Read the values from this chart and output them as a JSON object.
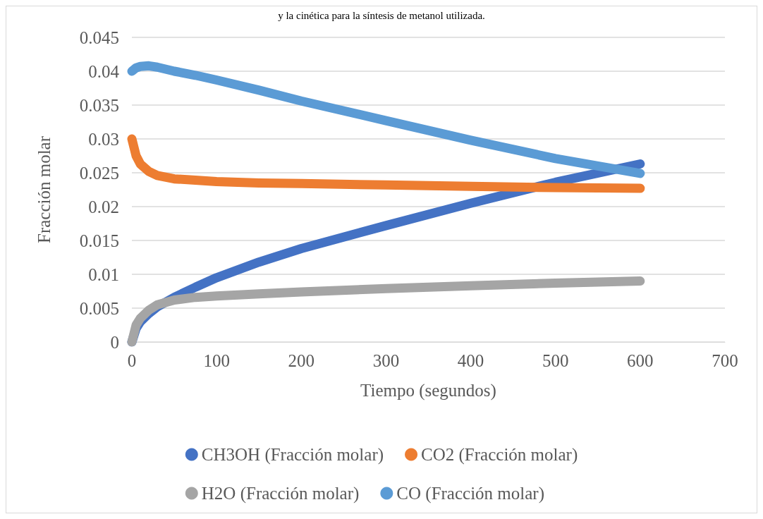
{
  "chart_data": {
    "type": "line",
    "title": "y la cinética para la síntesis de metanol utilizada.",
    "xlabel": "Tiempo (segundos)",
    "ylabel": "Fracción molar",
    "xlim": [
      0,
      700
    ],
    "xticks": [
      0,
      100,
      200,
      300,
      400,
      500,
      600,
      700
    ],
    "ylim": [
      0,
      0.045
    ],
    "yticks": [
      0,
      0.005,
      0.01,
      0.015,
      0.02,
      0.025,
      0.03,
      0.035,
      0.04,
      0.045
    ],
    "grid": "y",
    "legend": "bottom",
    "marker": "none",
    "line_style": "solid",
    "x": [
      0,
      5,
      10,
      20,
      30,
      50,
      75,
      100,
      150,
      200,
      300,
      400,
      500,
      600
    ],
    "series": [
      {
        "name": "CH3OH (Fracción molar)",
        "color": "#4472c4",
        "values": [
          0,
          0.002,
          0.003,
          0.0042,
          0.0052,
          0.0066,
          0.0081,
          0.0095,
          0.0118,
          0.0138,
          0.0172,
          0.0205,
          0.0236,
          0.0263
        ]
      },
      {
        "name": "CO2 (Fracción molar)",
        "color": "#ed7d31",
        "values": [
          0.03,
          0.0275,
          0.0263,
          0.0252,
          0.0246,
          0.0241,
          0.0239,
          0.0237,
          0.0235,
          0.0234,
          0.0232,
          0.023,
          0.0228,
          0.0227
        ]
      },
      {
        "name": "H2O (Fracción molar)",
        "color": "#a5a5a5",
        "values": [
          0,
          0.0025,
          0.0035,
          0.0047,
          0.0055,
          0.0062,
          0.0066,
          0.0068,
          0.0071,
          0.0074,
          0.0079,
          0.0083,
          0.0087,
          0.009
        ]
      },
      {
        "name": "CO (Fracción molar)",
        "color": "#5b9bd5",
        "values": [
          0.04,
          0.0405,
          0.0407,
          0.0408,
          0.0406,
          0.04,
          0.0394,
          0.0387,
          0.0372,
          0.0356,
          0.0327,
          0.0298,
          0.0271,
          0.0249
        ]
      }
    ]
  }
}
